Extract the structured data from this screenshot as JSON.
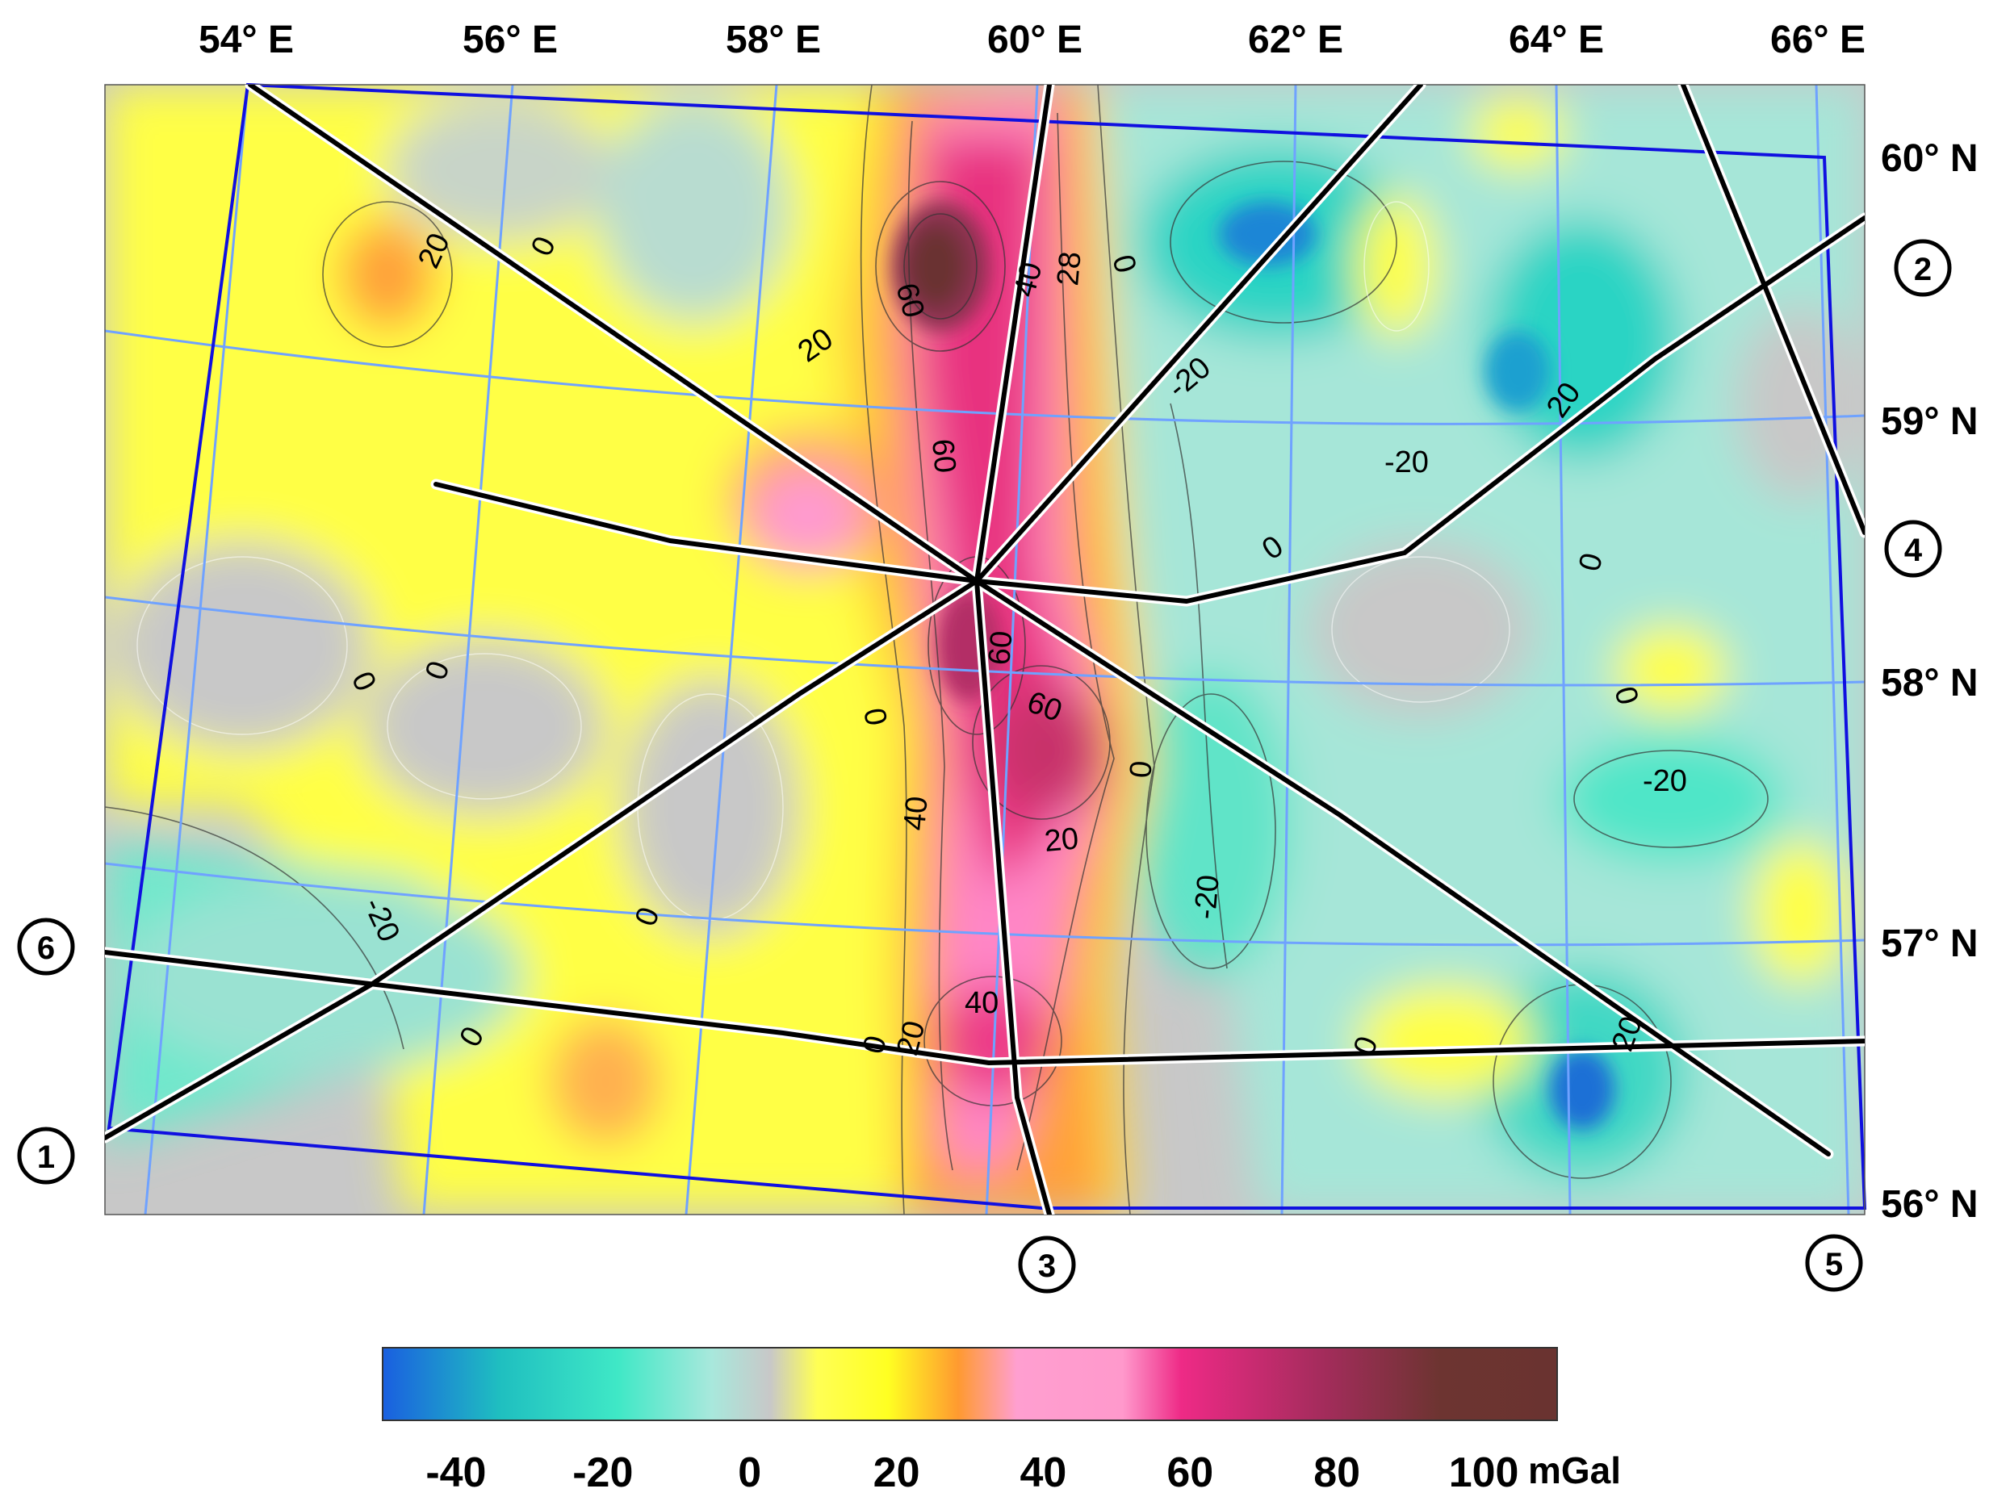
{
  "map": {
    "longitude_labels": [
      "54° E",
      "56° E",
      "58° E",
      "60° E",
      "62° E",
      "64° E",
      "66° E"
    ],
    "latitude_labels": [
      "60° N",
      "59° N",
      "58° N",
      "57° N",
      "56° N"
    ],
    "profile_markers": [
      "1",
      "2",
      "3",
      "4",
      "5",
      "6"
    ],
    "contour_labels": [
      "20",
      "0",
      "60",
      "20",
      "40",
      "28",
      "0",
      "-20",
      "20",
      "60",
      "0",
      "0",
      "0",
      "60",
      "0",
      "0",
      "60",
      "0",
      "40",
      "20",
      "0",
      "-20",
      "-20",
      "0",
      "-20",
      "40",
      "20",
      "0",
      "0",
      "20",
      "0",
      "-20"
    ],
    "colors": {
      "neg40": "#1a6fd6",
      "neg20": "#3fe0c3",
      "zero": "#c8c8c8",
      "pos20": "#ffff33",
      "pos30": "#ff9a30",
      "pos40": "#ff8fc8",
      "pos60": "#e8287f",
      "pos80": "#9b2b55",
      "pos100": "#6a3330",
      "frame": "#1010e0",
      "graticule": "#6fa2ff",
      "profile": "#000000"
    }
  },
  "colorbar": {
    "tick_labels": [
      "-40",
      "-20",
      "0",
      "20",
      "40",
      "60",
      "80",
      "100"
    ],
    "unit": "mGal",
    "range": [
      -50,
      110
    ]
  }
}
